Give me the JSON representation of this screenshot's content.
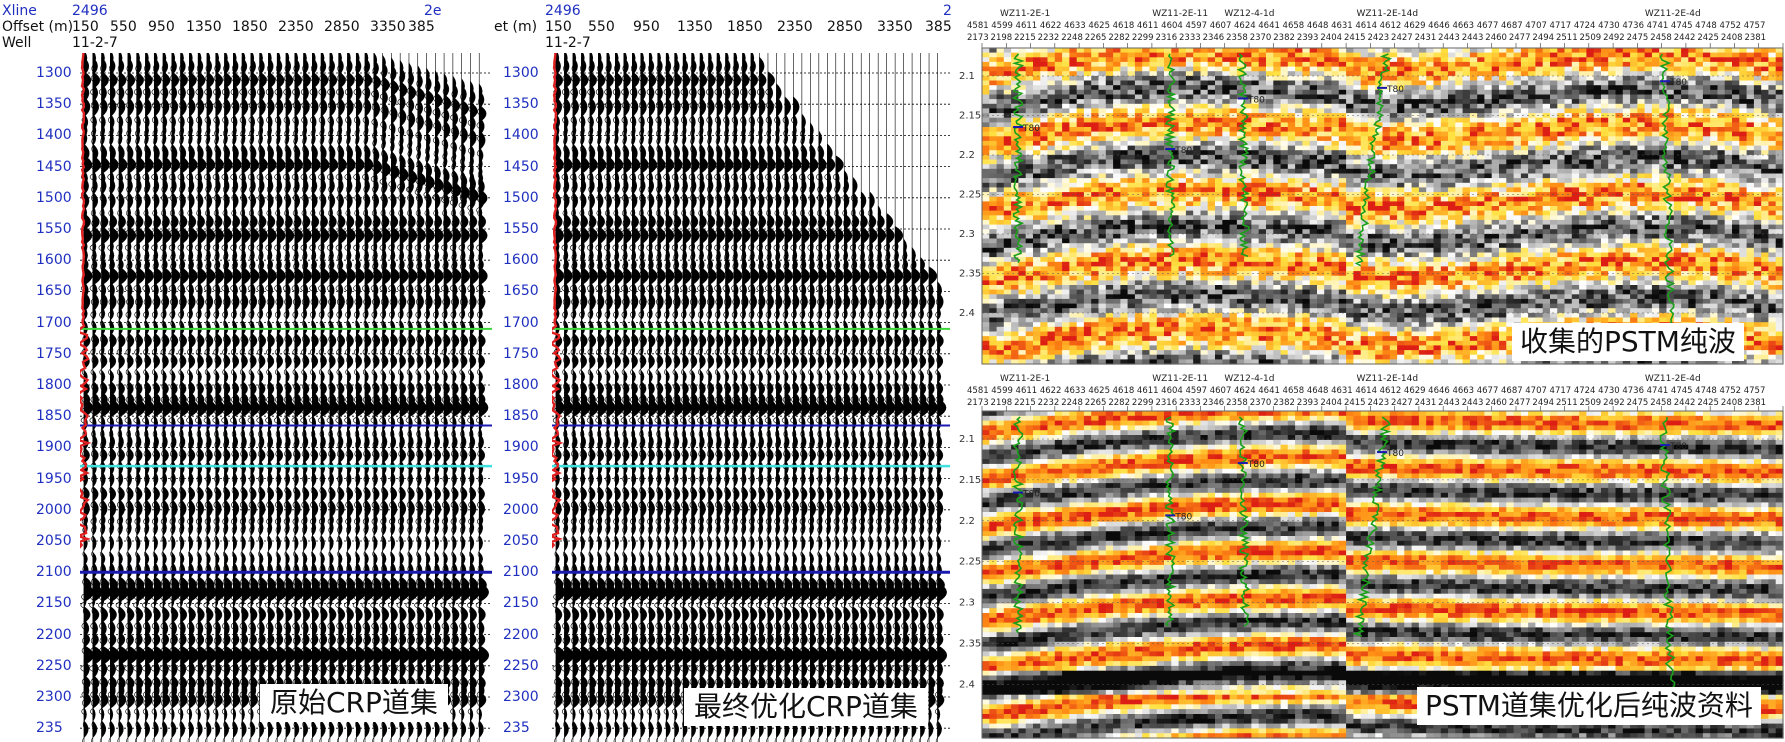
{
  "left_header": {
    "xline_label": "Xline",
    "xline_value_left": "2496",
    "xline_value_right": "2e",
    "offset_label": "Offset (m)",
    "well_label": "Well",
    "well_value": "11-2-7"
  },
  "mid_header": {
    "xline_value_left": "2496",
    "xline_value_right": "2",
    "offset_label": "et (m)",
    "well_value": "11-2-7"
  },
  "offset_ticks": [
    "150",
    "550",
    "950",
    "1350",
    "1850",
    "2350",
    "2850",
    "3350",
    "385"
  ],
  "time_ticks": [
    "1300",
    "1350",
    "1400",
    "1450",
    "1500",
    "1550",
    "1600",
    "1650",
    "1700",
    "1750",
    "1800",
    "1850",
    "1900",
    "1950",
    "2000",
    "2050",
    "2100",
    "2150",
    "2200",
    "2250",
    "2300",
    "235"
  ],
  "left_caption": "原始CRP道集",
  "mid_caption": "最终优化CRP道集",
  "top_right_caption": "收集的PSTM纯波",
  "bottom_right_caption": "PSTM道集优化后纯波资料",
  "seismic": {
    "trace_row1": [
      "4581",
      "4599",
      "4611",
      "4622",
      "4633",
      "4625",
      "4618",
      "4611",
      "4604",
      "4597",
      "4607",
      "4624",
      "4641",
      "4658",
      "4648",
      "4631",
      "4614",
      "4612",
      "4629",
      "4646",
      "4663",
      "4677",
      "4687",
      "4707",
      "4717",
      "4724",
      "4730",
      "4736",
      "4741",
      "4745",
      "4748",
      "4752",
      "4757"
    ],
    "trace_row2": [
      "2173",
      "2198",
      "2215",
      "2232",
      "2248",
      "2265",
      "2282",
      "2299",
      "2316",
      "2333",
      "2346",
      "2358",
      "2370",
      "2382",
      "2393",
      "2404",
      "2415",
      "2423",
      "2427",
      "2431",
      "2443",
      "2443",
      "2460",
      "2477",
      "2494",
      "2511",
      "2509",
      "2492",
      "2475",
      "2458",
      "2442",
      "2425",
      "2408",
      "2381"
    ],
    "time_ticks": [
      "2.1",
      "2.15",
      "2.2",
      "2.25",
      "2.3",
      "2.35",
      "2.4"
    ],
    "wells": [
      "WZ11-2E-1",
      "WZ11-2E-11",
      "WZ12-4-1d",
      "WZ11-2E-14d",
      "WZ11-2E-4d"
    ],
    "horizon_label": "T80"
  },
  "colors": {
    "axis_blue": "#1f2fbf",
    "red_log": "#e02020",
    "horizon_green": "#3ad63a",
    "horizon_navy": "#1a1ab0",
    "horizon_cyan": "#40e0e0",
    "well_green": "#1aa01a"
  }
}
